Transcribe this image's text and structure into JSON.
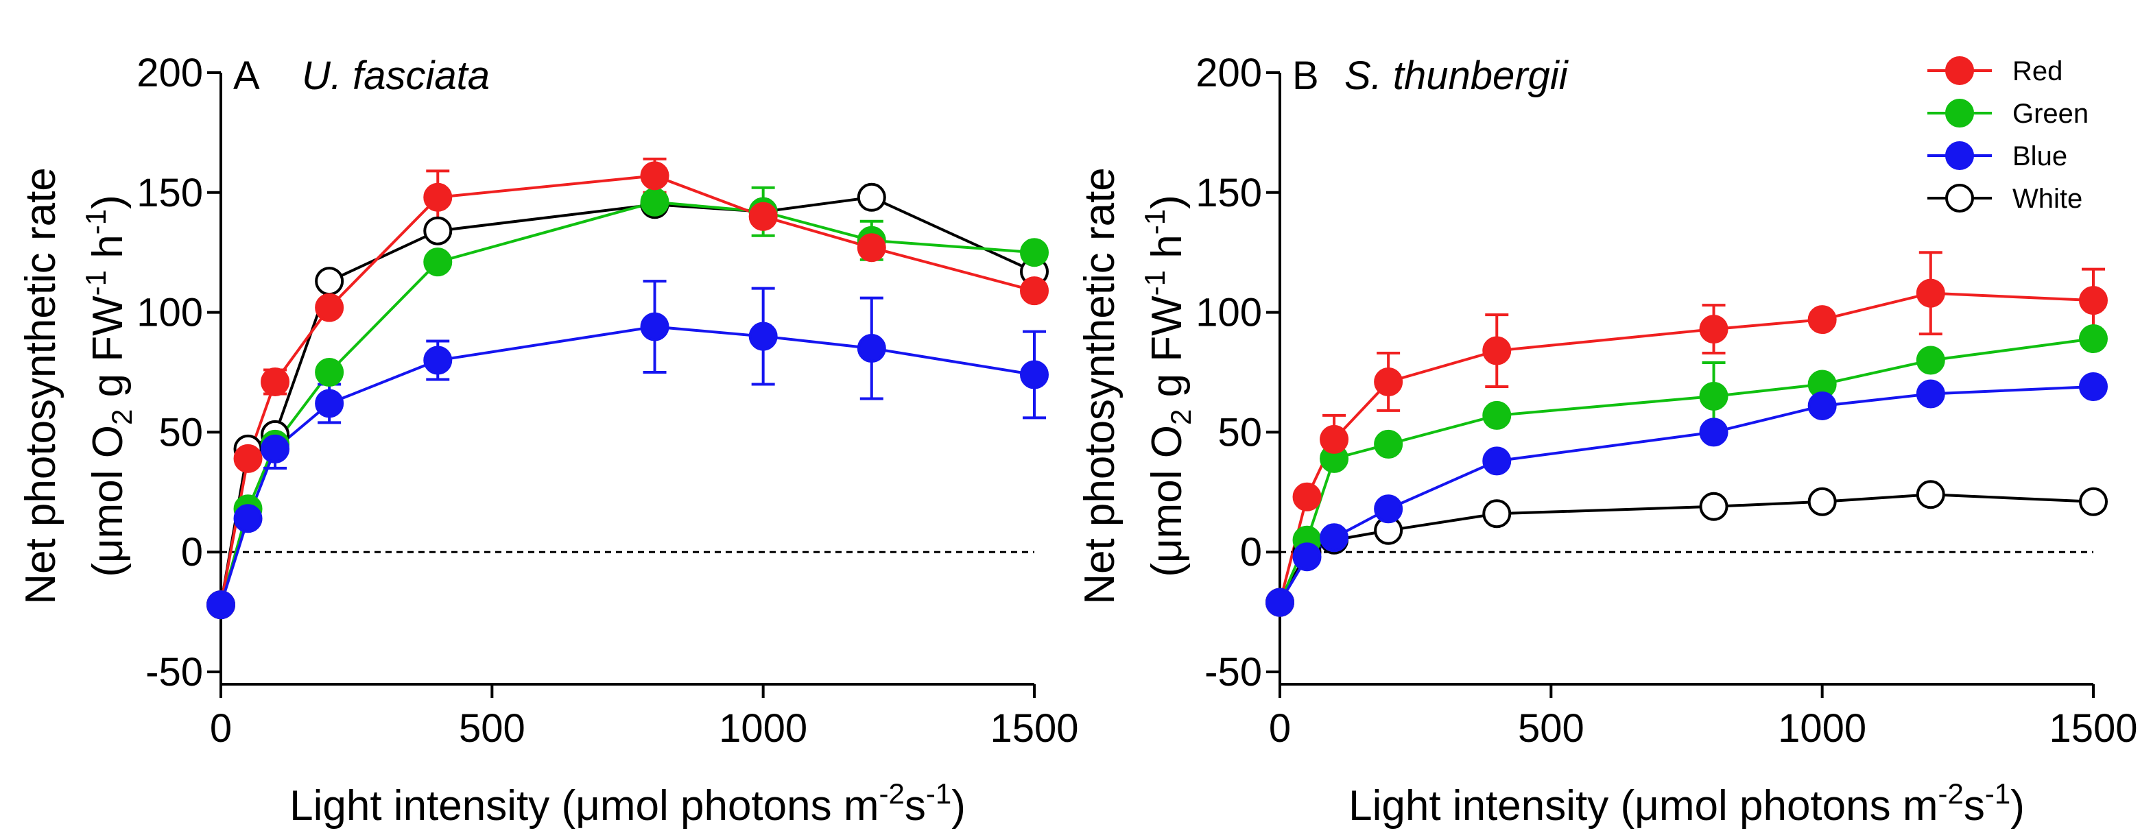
{
  "chart_data": [
    {
      "type": "line",
      "panel": "A",
      "title": "U. fasciata",
      "xlabel": "Light intensity (μmol photons m⁻²s⁻¹)",
      "xlabel_parts": [
        "Light intensity (μmol photons m",
        "-2",
        "s",
        "-1",
        ")"
      ],
      "ylabel_line1": "Net photosynthetic rate",
      "ylabel_line2_parts": [
        "(μmol O",
        "2",
        " g FW",
        "-1",
        " h",
        "-1",
        ")"
      ],
      "xlim": [
        0,
        1500
      ],
      "ylim": [
        -50,
        200
      ],
      "xticks": [
        "0",
        "500",
        "1000",
        "1500"
      ],
      "yticks": [
        "-50",
        "0",
        "50",
        "100",
        "150",
        "200"
      ],
      "x": [
        0,
        50,
        100,
        200,
        400,
        800,
        1000,
        1200,
        1500
      ],
      "series": [
        {
          "name": "White",
          "values": [
            -22,
            43,
            49,
            113,
            134,
            145,
            142,
            148,
            117
          ],
          "errors": [
            0,
            0,
            0,
            0,
            0,
            0,
            0,
            0,
            0
          ]
        },
        {
          "name": "Green",
          "values": [
            -22,
            18,
            45,
            75,
            121,
            146,
            142,
            130,
            125
          ],
          "errors": [
            0,
            0,
            0,
            0,
            0,
            0,
            10,
            8,
            0
          ]
        },
        {
          "name": "Red",
          "values": [
            -22,
            39,
            71,
            102,
            148,
            157,
            140,
            127,
            109
          ],
          "errors": [
            0,
            0,
            5,
            0,
            11,
            7,
            0,
            0,
            0
          ]
        },
        {
          "name": "Blue",
          "values": [
            -22,
            14,
            43,
            62,
            80,
            94,
            90,
            85,
            74
          ],
          "errors": [
            0,
            0,
            8,
            8,
            8,
            19,
            20,
            21,
            18
          ]
        }
      ]
    },
    {
      "type": "line",
      "panel": "B",
      "title": "S. thunbergii",
      "xlabel": "Light intensity (μmol photons m⁻²s⁻¹)",
      "xlabel_parts": [
        "Light intensity (μmol photons m",
        "-2",
        "s",
        "-1",
        ")"
      ],
      "ylabel_line1": "Net photosynthetic rate",
      "ylabel_line2_parts": [
        "(μmol O",
        "2",
        " g FW",
        "-1",
        " h",
        "-1",
        ")"
      ],
      "xlim": [
        0,
        1500
      ],
      "ylim": [
        -50,
        200
      ],
      "xticks": [
        "0",
        "500",
        "1000",
        "1500"
      ],
      "yticks": [
        "-50",
        "0",
        "50",
        "100",
        "150",
        "200"
      ],
      "x": [
        0,
        50,
        100,
        200,
        400,
        800,
        1000,
        1200,
        1500
      ],
      "series": [
        {
          "name": "White",
          "values": [
            -21,
            0,
            5,
            9,
            16,
            19,
            21,
            24,
            21
          ],
          "errors": [
            0,
            0,
            0,
            0,
            0,
            0,
            0,
            0,
            0
          ]
        },
        {
          "name": "Green",
          "values": [
            -21,
            5,
            39,
            45,
            57,
            65,
            70,
            80,
            89
          ],
          "errors": [
            0,
            0,
            0,
            0,
            0,
            14,
            0,
            0,
            0
          ]
        },
        {
          "name": "Red",
          "values": [
            -21,
            23,
            47,
            71,
            84,
            93,
            97,
            108,
            105
          ],
          "errors": [
            0,
            0,
            10,
            12,
            15,
            10,
            0,
            17,
            13
          ]
        },
        {
          "name": "Blue",
          "values": [
            -21,
            -2,
            6,
            18,
            38,
            50,
            61,
            66,
            69
          ],
          "errors": [
            0,
            0,
            0,
            0,
            0,
            0,
            0,
            0,
            0
          ]
        }
      ]
    }
  ],
  "legend": {
    "entries": [
      {
        "name": "Red",
        "label": "Red",
        "color": "#f02020",
        "fill": "#f02020"
      },
      {
        "name": "Green",
        "label": "Green",
        "color": "#10c010",
        "fill": "#10c010"
      },
      {
        "name": "Blue",
        "label": "Blue",
        "color": "#1515f0",
        "fill": "#1515f0"
      },
      {
        "name": "White",
        "label": "White",
        "color": "#000000",
        "fill": "#ffffff"
      }
    ]
  }
}
